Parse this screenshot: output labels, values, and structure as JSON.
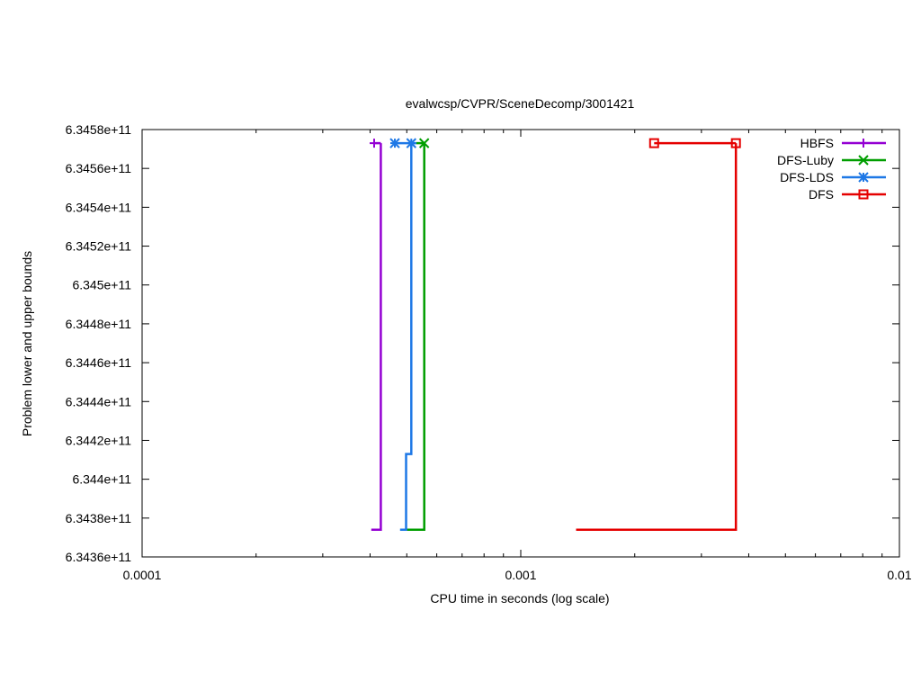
{
  "chart_data": {
    "type": "line",
    "title": "evalwcsp/CVPR/SceneDecomp/3001421",
    "xlabel": "CPU time in seconds (log scale)",
    "ylabel": "Problem lower and upper bounds",
    "x_scale": "log",
    "xlim": [
      0.0001,
      0.01
    ],
    "ylim": [
      634360000000,
      634580000000
    ],
    "x_ticks": [
      {
        "value": 0.0001,
        "label": "0.0001"
      },
      {
        "value": 0.001,
        "label": "0.001"
      },
      {
        "value": 0.01,
        "label": "0.01"
      }
    ],
    "y_ticks": [
      {
        "value": 634360000000,
        "label": "6.3436e+11"
      },
      {
        "value": 634380000000,
        "label": "6.3438e+11"
      },
      {
        "value": 634400000000,
        "label": "6.344e+11"
      },
      {
        "value": 634420000000,
        "label": "6.3442e+11"
      },
      {
        "value": 634440000000,
        "label": "6.3444e+11"
      },
      {
        "value": 634460000000,
        "label": "6.3446e+11"
      },
      {
        "value": 634480000000,
        "label": "6.3448e+11"
      },
      {
        "value": 634500000000,
        "label": "6.345e+11"
      },
      {
        "value": 634520000000,
        "label": "6.3452e+11"
      },
      {
        "value": 634540000000,
        "label": "6.3454e+11"
      },
      {
        "value": 634560000000,
        "label": "6.3456e+11"
      },
      {
        "value": 634580000000,
        "label": "6.3458e+11"
      }
    ],
    "grid": false,
    "legend": "top-right",
    "series": [
      {
        "name": "HBFS",
        "color": "#9400d3",
        "marker": "plus",
        "lower": [
          [
            0.000403,
            634374000000
          ],
          [
            0.000427,
            634374000000
          ],
          [
            0.000427,
            634573000000
          ]
        ],
        "upper": [
          [
            0.00041,
            634573000000
          ],
          [
            0.000427,
            634573000000
          ]
        ],
        "markers": [
          [
            0.00041,
            634573000000
          ]
        ]
      },
      {
        "name": "DFS-Luby",
        "color": "#009e00",
        "marker": "x",
        "lower": [
          [
            0.000498,
            634374000000
          ],
          [
            0.000556,
            634374000000
          ],
          [
            0.000556,
            634573000000
          ]
        ],
        "upper": [
          [
            0.00053,
            634573000000
          ],
          [
            0.000556,
            634573000000
          ]
        ],
        "markers": [
          [
            0.000556,
            634573000000
          ]
        ]
      },
      {
        "name": "DFS-LDS",
        "color": "#1e78e6",
        "marker": "star",
        "lower": [
          [
            0.00048,
            634374000000
          ],
          [
            0.000498,
            634374000000
          ],
          [
            0.000498,
            634413000000
          ],
          [
            0.000514,
            634413000000
          ],
          [
            0.000514,
            634573000000
          ]
        ],
        "upper": [
          [
            0.000465,
            634573000000
          ],
          [
            0.00053,
            634573000000
          ]
        ],
        "markers": [
          [
            0.000465,
            634573000000
          ],
          [
            0.000514,
            634573000000
          ]
        ]
      },
      {
        "name": "DFS",
        "color": "#e50000",
        "marker": "box",
        "lower": [
          [
            0.0014,
            634374000000
          ],
          [
            0.0037,
            634374000000
          ],
          [
            0.0037,
            634573000000
          ]
        ],
        "upper": [
          [
            0.00225,
            634573000000
          ],
          [
            0.0037,
            634573000000
          ]
        ],
        "markers": [
          [
            0.00225,
            634573000000
          ],
          [
            0.0037,
            634573000000
          ]
        ]
      }
    ]
  }
}
